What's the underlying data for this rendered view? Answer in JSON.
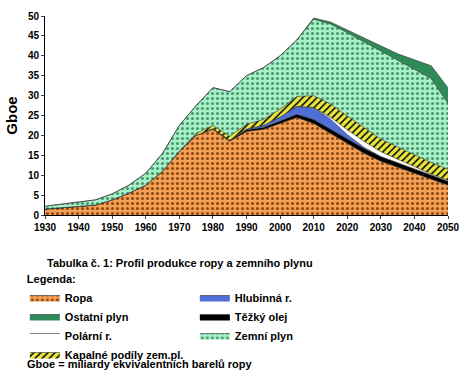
{
  "chart_data": {
    "type": "area",
    "stacked": true,
    "title": "Tabulka č. 1: Profil produkce ropy a zemního plynu",
    "y_label": "Gboe",
    "legend_title": "Legenda:",
    "annotations": [
      "Gboe = miliardy ekvivalentních barelů ropy"
    ],
    "grid": false,
    "legend": "bottom",
    "x": [
      1930,
      1935,
      1940,
      1945,
      1950,
      1955,
      1960,
      1965,
      1970,
      1975,
      1980,
      1985,
      1990,
      1995,
      2000,
      2005,
      2010,
      2015,
      2020,
      2025,
      2030,
      2035,
      2040,
      2045,
      2050
    ],
    "xlim": [
      1930,
      2050
    ],
    "xticks": [
      1930,
      1940,
      1950,
      1960,
      1970,
      1980,
      1990,
      2000,
      2010,
      2020,
      2030,
      2040,
      2050
    ],
    "ylim": [
      0,
      50
    ],
    "yticks": [
      0,
      5,
      10,
      15,
      20,
      25,
      30,
      35,
      40,
      45,
      50
    ],
    "series": [
      {
        "name": "Ropa",
        "color": "#f5a055",
        "values": [
          1.5,
          1.8,
          2.2,
          2.5,
          3.8,
          5.5,
          7.5,
          11,
          16,
          20,
          21.5,
          18.5,
          21,
          21.5,
          23,
          24.5,
          23,
          20.5,
          18,
          15.5,
          13.5,
          12,
          10.5,
          9,
          7.5
        ]
      },
      {
        "name": "Těžký olej",
        "color": "#000000",
        "values": [
          0,
          0,
          0,
          0,
          0,
          0,
          0,
          0,
          0,
          0,
          0.2,
          0.3,
          0.4,
          0.5,
          0.6,
          0.8,
          1,
          1.1,
          1.2,
          1.2,
          1.2,
          1.1,
          1.1,
          1,
          1
        ]
      },
      {
        "name": "Hlubinná r.",
        "color": "#4f6fd6",
        "values": [
          0,
          0,
          0,
          0,
          0,
          0,
          0,
          0,
          0,
          0,
          0,
          0,
          0.2,
          0.5,
          1,
          2,
          3,
          2.5,
          1,
          0.3,
          0,
          0,
          0,
          0,
          0
        ]
      },
      {
        "name": "Polární r.",
        "color": "#ffffff",
        "values": [
          0,
          0,
          0,
          0,
          0,
          0,
          0,
          0,
          0,
          0,
          0,
          0,
          0,
          0,
          0,
          0,
          0,
          0.5,
          1.2,
          1.5,
          1.2,
          0.9,
          0.5,
          0.3,
          0.2
        ]
      },
      {
        "name": "Kapalné podíly zem.pl.",
        "color": "#e8e840",
        "values": [
          0,
          0,
          0,
          0,
          0,
          0,
          0,
          0,
          0,
          0.5,
          0.8,
          1,
          1.2,
          1.5,
          2,
          2.5,
          3,
          3.3,
          3.5,
          3.4,
          3.2,
          3.1,
          3,
          2.9,
          2.8
        ]
      },
      {
        "name": "Zemní plyn",
        "color": "#a8f0c8",
        "values": [
          0.7,
          0.9,
          1.1,
          1.3,
          1.5,
          2,
          3,
          4.5,
          6.5,
          7,
          9.5,
          11.2,
          12.2,
          13,
          13.4,
          14.2,
          19.2,
          20.1,
          20.9,
          21.6,
          22.1,
          21.7,
          21.6,
          21.1,
          16.5
        ]
      },
      {
        "name": "Ostatní plyn",
        "color": "#2e8b57",
        "values": [
          0,
          0,
          0,
          0,
          0,
          0,
          0,
          0,
          0,
          0,
          0,
          0,
          0,
          0,
          0,
          0,
          0.3,
          0.5,
          0.7,
          1,
          1.3,
          1.7,
          2.3,
          3.2,
          4
        ]
      }
    ]
  }
}
